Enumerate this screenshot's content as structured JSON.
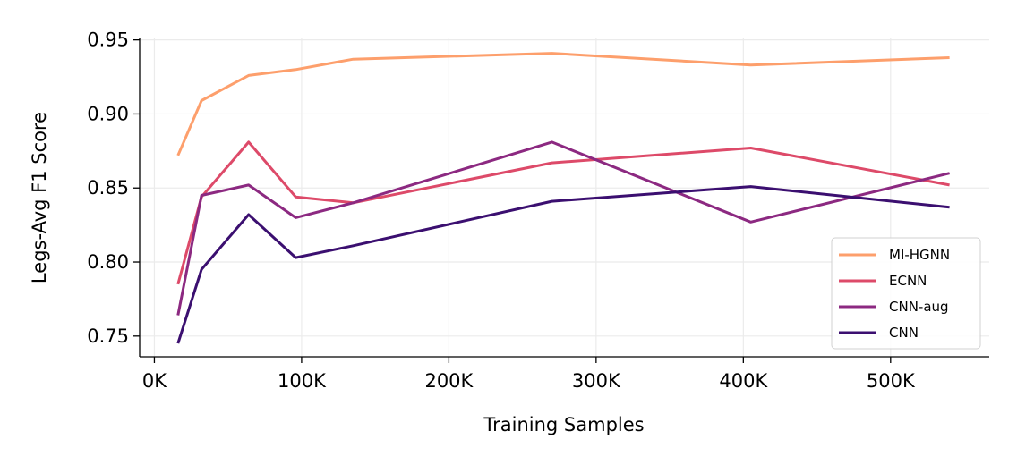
{
  "chart_data": {
    "type": "line",
    "title": "",
    "xlabel": "Training Samples",
    "ylabel": "Legs-Avg F1 Score",
    "xlim": [
      -10000,
      567000
    ],
    "ylim": [
      0.736,
      0.951
    ],
    "x_ticks": [
      0,
      100000,
      200000,
      300000,
      400000,
      500000
    ],
    "x_tick_labels": [
      "0K",
      "100K",
      "200K",
      "300K",
      "400K",
      "500K"
    ],
    "y_ticks": [
      0.75,
      0.8,
      0.85,
      0.9,
      0.95
    ],
    "y_tick_labels": [
      "0.75",
      "0.80",
      "0.85",
      "0.90",
      "0.95"
    ],
    "grid": true,
    "legend_position": "lower-right",
    "x": [
      16000,
      32000,
      64000,
      96000,
      135000,
      270000,
      405000,
      540000
    ],
    "series": [
      {
        "name": "MI-HGNN",
        "color": "#fd9f6c",
        "values": [
          0.872,
          0.909,
          0.926,
          0.93,
          0.937,
          0.941,
          0.933,
          0.938
        ]
      },
      {
        "name": "ECNN",
        "color": "#dd4a69",
        "values": [
          0.785,
          0.844,
          0.881,
          0.844,
          0.84,
          0.867,
          0.877,
          0.852
        ]
      },
      {
        "name": "CNN-aug",
        "color": "#8c2981",
        "values": [
          0.764,
          0.845,
          0.852,
          0.83,
          0.84,
          0.881,
          0.827,
          0.86
        ]
      },
      {
        "name": "CNN",
        "color": "#3b0f70",
        "values": [
          0.745,
          0.795,
          0.832,
          0.803,
          0.811,
          0.841,
          0.851,
          0.837
        ]
      }
    ]
  }
}
